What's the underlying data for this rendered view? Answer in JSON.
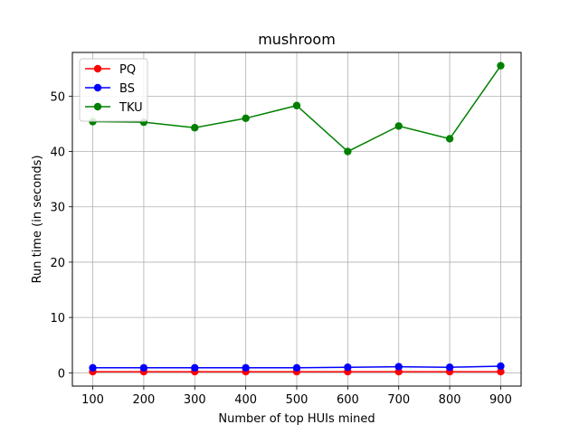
{
  "chart_data": {
    "type": "line",
    "title": "mushroom",
    "xlabel": "Number of top HUIs mined",
    "ylabel": "Run time (in seconds)",
    "x": [
      100,
      200,
      300,
      400,
      500,
      600,
      700,
      800,
      900
    ],
    "xticks": [
      "100",
      "200",
      "300",
      "400",
      "500",
      "600",
      "700",
      "800",
      "900"
    ],
    "yticks": [
      "0",
      "10",
      "20",
      "30",
      "40",
      "50"
    ],
    "xlim": [
      60,
      940
    ],
    "ylim": [
      -2.4,
      57.9
    ],
    "grid": true,
    "legend_position": "top-left",
    "series": [
      {
        "name": "PQ",
        "color": "#ff0000",
        "values": [
          0.2,
          0.2,
          0.2,
          0.2,
          0.2,
          0.2,
          0.2,
          0.2,
          0.2
        ]
      },
      {
        "name": "BS",
        "color": "#0000ff",
        "values": [
          0.9,
          0.9,
          0.9,
          0.9,
          0.9,
          1.0,
          1.1,
          1.0,
          1.2
        ]
      },
      {
        "name": "TKU",
        "color": "#008000",
        "values": [
          45.4,
          45.3,
          44.3,
          46.0,
          48.3,
          40.0,
          44.6,
          42.3,
          55.5
        ]
      }
    ]
  }
}
